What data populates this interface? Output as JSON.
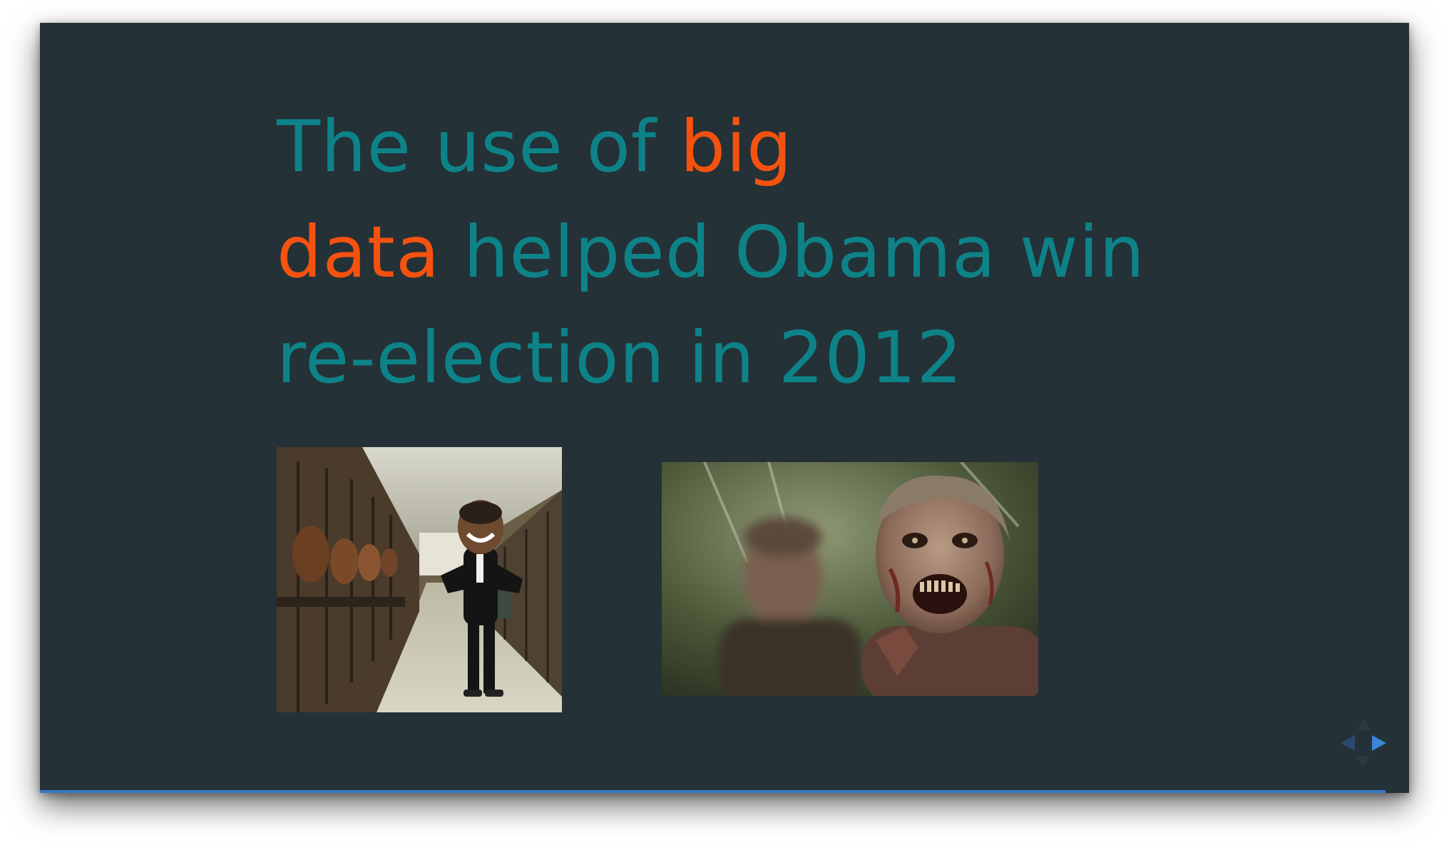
{
  "slide": {
    "headline": {
      "part1": "The use of ",
      "accent1": "big",
      "accent2": "data",
      "part2": " helped Obama win",
      "part3": "re-election in 2012"
    },
    "progress_fraction": 0.983
  },
  "colors": {
    "background": "#243137",
    "headline": "#0d8388",
    "accent": "#f5520f",
    "progress": "#3a79c8",
    "nav_active": "#3a86d8",
    "nav_inactive": "#2b4a72"
  },
  "navigation": {
    "prev_icon": "triangle-left-icon",
    "next_icon": "triangle-right-icon",
    "up_icon": "triangle-up-icon",
    "down_icon": "triangle-down-icon"
  }
}
